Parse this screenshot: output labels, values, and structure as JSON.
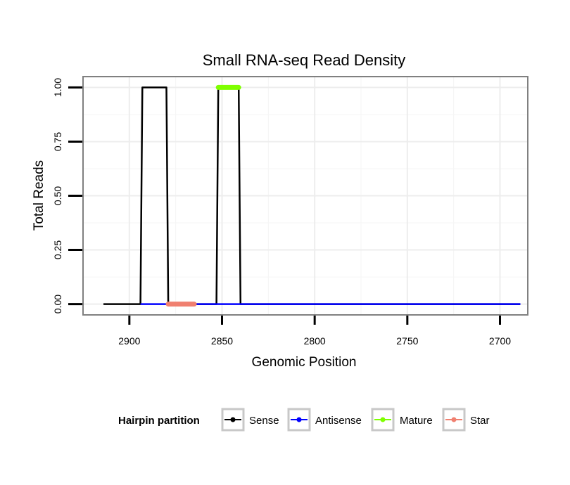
{
  "chart_data": {
    "type": "line",
    "title": "Small RNA-seq Read Density",
    "xlabel": "Genomic Position",
    "ylabel": "Total Reads",
    "xlim": [
      2925,
      2685
    ],
    "ylim": [
      -0.05,
      1.05
    ],
    "x_reversed": true,
    "grid": true,
    "x_ticks": [
      2900,
      2850,
      2800,
      2750,
      2700
    ],
    "x_tick_labels": [
      "2900",
      "2850",
      "2800",
      "2750",
      "2700"
    ],
    "y_ticks": [
      0,
      0.25,
      0.5,
      0.75,
      1
    ],
    "y_tick_labels": [
      "0.00",
      "0.25",
      "0.50",
      "0.75",
      "1.00"
    ],
    "series": [
      {
        "name": "Sense",
        "color": "#000000",
        "width": 2.5,
        "x": [
          2914,
          2894,
          2893,
          2880,
          2879,
          2853,
          2852,
          2841,
          2840,
          2689
        ],
        "y": [
          0,
          0,
          1,
          1,
          0,
          0,
          1,
          1,
          0,
          0
        ]
      },
      {
        "name": "Antisense",
        "color": "#0000ff",
        "width": 2.5,
        "x": [
          2894,
          2689
        ],
        "y": [
          0,
          0
        ]
      },
      {
        "name": "Mature",
        "color": "#7fff00",
        "width": 7,
        "x": [
          2852,
          2841
        ],
        "y": [
          1,
          1
        ]
      },
      {
        "name": "Star",
        "color": "#f08070",
        "width": 7,
        "x": [
          2879,
          2865
        ],
        "y": [
          0,
          0
        ]
      }
    ],
    "legend": {
      "title": "Hairpin partition",
      "placement": "bottom",
      "items": [
        {
          "label": "Sense",
          "color": "#000000"
        },
        {
          "label": "Antisense",
          "color": "#0000ff"
        },
        {
          "label": "Mature",
          "color": "#7fff00"
        },
        {
          "label": "Star",
          "color": "#f08070"
        }
      ]
    }
  }
}
